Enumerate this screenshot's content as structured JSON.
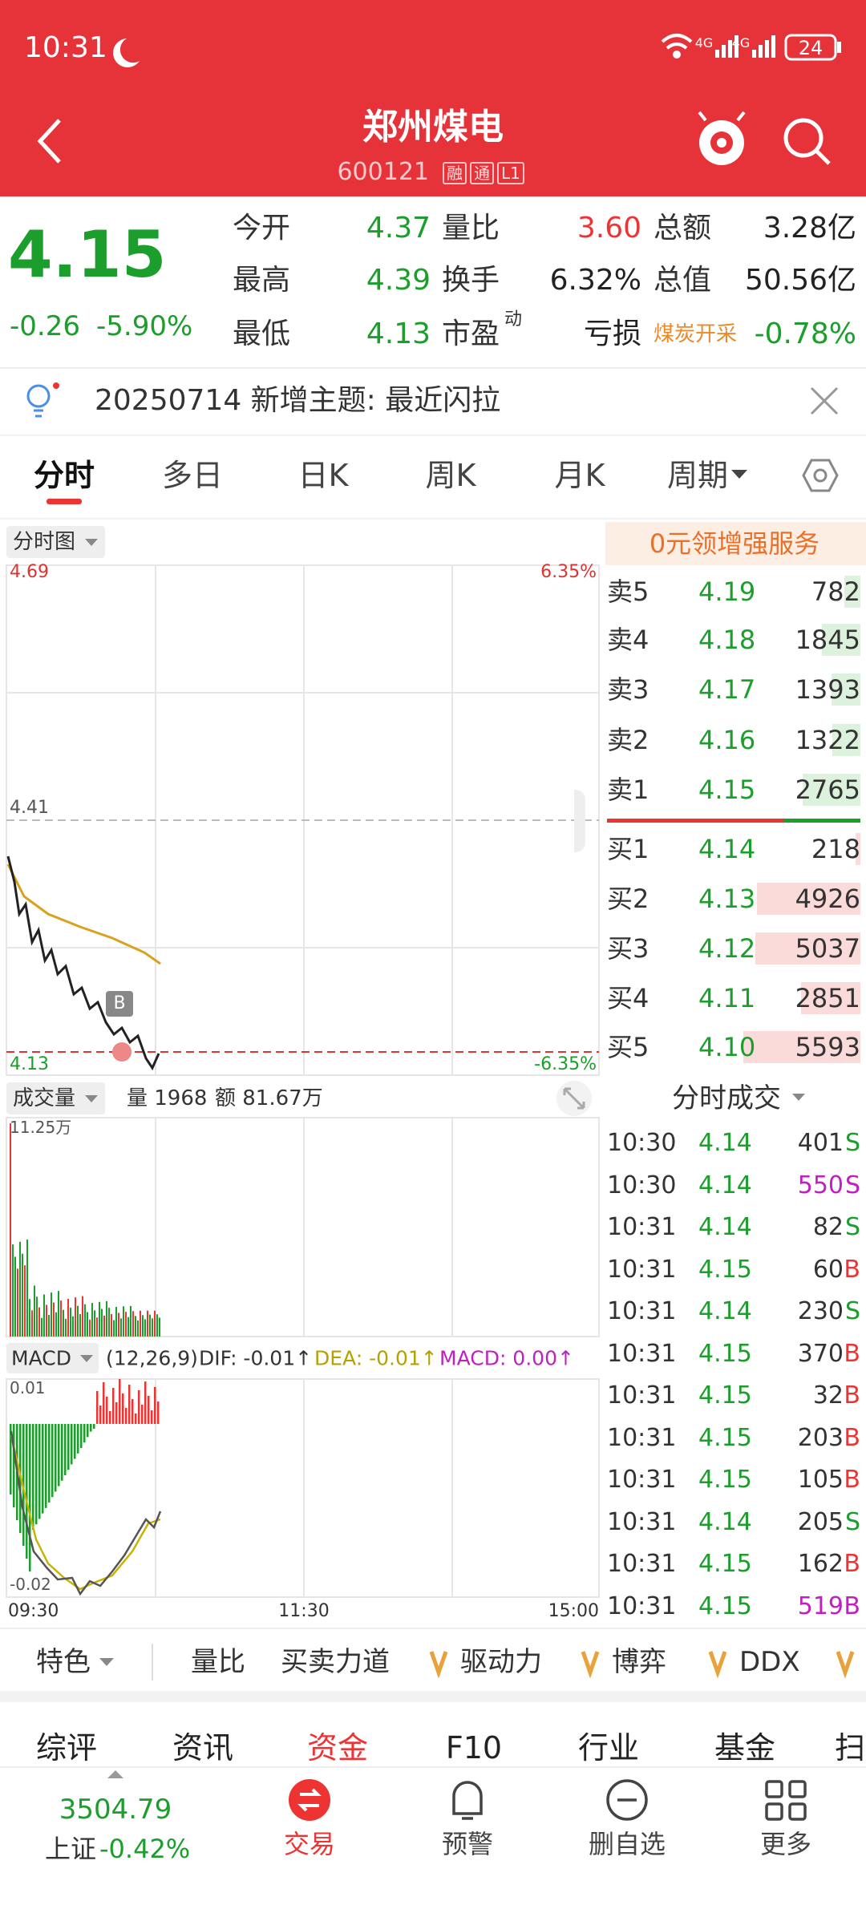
{
  "status_bar": {
    "time": "10:31",
    "network": [
      "4G",
      "4G"
    ],
    "battery": "24"
  },
  "header": {
    "title": "郑州煤电",
    "code": "600121",
    "badges": [
      "融",
      "通",
      "L1"
    ]
  },
  "quote": {
    "price": "4.15",
    "change": "-0.26",
    "change_pct": "-5.90%",
    "stats": [
      {
        "label": "今开",
        "value": "4.37",
        "tone": "down"
      },
      {
        "label": "量比",
        "value": "3.60",
        "tone": "up"
      },
      {
        "label": "总额",
        "value": "3.28亿",
        "tone": "flat"
      },
      {
        "label": "最高",
        "value": "4.39",
        "tone": "down"
      },
      {
        "label": "换手",
        "value": "6.32%",
        "tone": "flat"
      },
      {
        "label": "总值",
        "value": "50.56亿",
        "tone": "flat"
      },
      {
        "label": "最低",
        "value": "4.13",
        "tone": "down"
      },
      {
        "label": "市盈",
        "sup": "动",
        "value": "亏损",
        "tone": "flat"
      },
      {
        "label": "煤炭开采",
        "value": "-0.78%",
        "tone": "down"
      }
    ]
  },
  "notice": {
    "text": "20250714 新增主题: 最近闪拉"
  },
  "tabs": {
    "items": [
      "分时",
      "多日",
      "日K",
      "周K",
      "月K",
      "周期"
    ],
    "active": 0
  },
  "chart": {
    "selector": "分时图",
    "price_max": "4.69",
    "price_mid": "4.41",
    "price_min": "4.13",
    "pct_max": "6.35%",
    "pct_min": "-6.35%",
    "marker": "B",
    "volume_selector": "成交量",
    "volume_info": "量 1968",
    "amount_info": "额 81.67万",
    "volume_max": "11.25万",
    "macd_selector": "MACD",
    "macd_params": "(12,26,9)",
    "dif": "DIF: -0.01↑",
    "dea": "DEA: -0.01↑",
    "macd": "MACD: 0.00↑",
    "macd_max": "0.01",
    "macd_min": "-0.02",
    "times": [
      "09:30",
      "11:30",
      "15:00"
    ]
  },
  "order_book": {
    "promo": "0元领增强服务",
    "asks": [
      {
        "label": "卖5",
        "price": "4.19",
        "volume": "782"
      },
      {
        "label": "卖4",
        "price": "4.18",
        "volume": "1845"
      },
      {
        "label": "卖3",
        "price": "4.17",
        "volume": "1393"
      },
      {
        "label": "卖2",
        "price": "4.16",
        "volume": "1322"
      },
      {
        "label": "卖1",
        "price": "4.15",
        "volume": "2765"
      }
    ],
    "bids": [
      {
        "label": "买1",
        "price": "4.14",
        "volume": "218"
      },
      {
        "label": "买2",
        "price": "4.13",
        "volume": "4926"
      },
      {
        "label": "买3",
        "price": "4.12",
        "volume": "5037"
      },
      {
        "label": "买4",
        "price": "4.11",
        "volume": "2851"
      },
      {
        "label": "买5",
        "price": "4.10",
        "volume": "5593"
      }
    ]
  },
  "trades": {
    "title": "分时成交",
    "rows": [
      {
        "time": "10:30",
        "price": "4.14",
        "volume": "401",
        "side": "S",
        "big": false
      },
      {
        "time": "10:30",
        "price": "4.14",
        "volume": "550",
        "side": "S",
        "big": true
      },
      {
        "time": "10:31",
        "price": "4.14",
        "volume": "82",
        "side": "S",
        "big": false
      },
      {
        "time": "10:31",
        "price": "4.15",
        "volume": "60",
        "side": "B",
        "big": false
      },
      {
        "time": "10:31",
        "price": "4.14",
        "volume": "230",
        "side": "S",
        "big": false
      },
      {
        "time": "10:31",
        "price": "4.15",
        "volume": "370",
        "side": "B",
        "big": false
      },
      {
        "time": "10:31",
        "price": "4.15",
        "volume": "32",
        "side": "B",
        "big": false
      },
      {
        "time": "10:31",
        "price": "4.15",
        "volume": "203",
        "side": "B",
        "big": false
      },
      {
        "time": "10:31",
        "price": "4.15",
        "volume": "105",
        "side": "B",
        "big": false
      },
      {
        "time": "10:31",
        "price": "4.14",
        "volume": "205",
        "side": "S",
        "big": false
      },
      {
        "time": "10:31",
        "price": "4.15",
        "volume": "162",
        "side": "B",
        "big": false
      },
      {
        "time": "10:31",
        "price": "4.15",
        "volume": "519",
        "side": "B",
        "big": true
      }
    ]
  },
  "indicators": {
    "first": "特色",
    "items": [
      "量比",
      "买卖力道"
    ],
    "vip_items": [
      "驱动力",
      "博弈",
      "DDX"
    ]
  },
  "f10_tabs": {
    "items": [
      "综评",
      "资讯",
      "资金",
      "F10",
      "行业",
      "基金",
      "扫"
    ],
    "active": 2
  },
  "bottom_nav": {
    "index_value": "3504.79",
    "index_name": "上证",
    "index_pct": "-0.42%",
    "items": [
      "交易",
      "预警",
      "删自选",
      "更多"
    ],
    "active": 0
  }
}
